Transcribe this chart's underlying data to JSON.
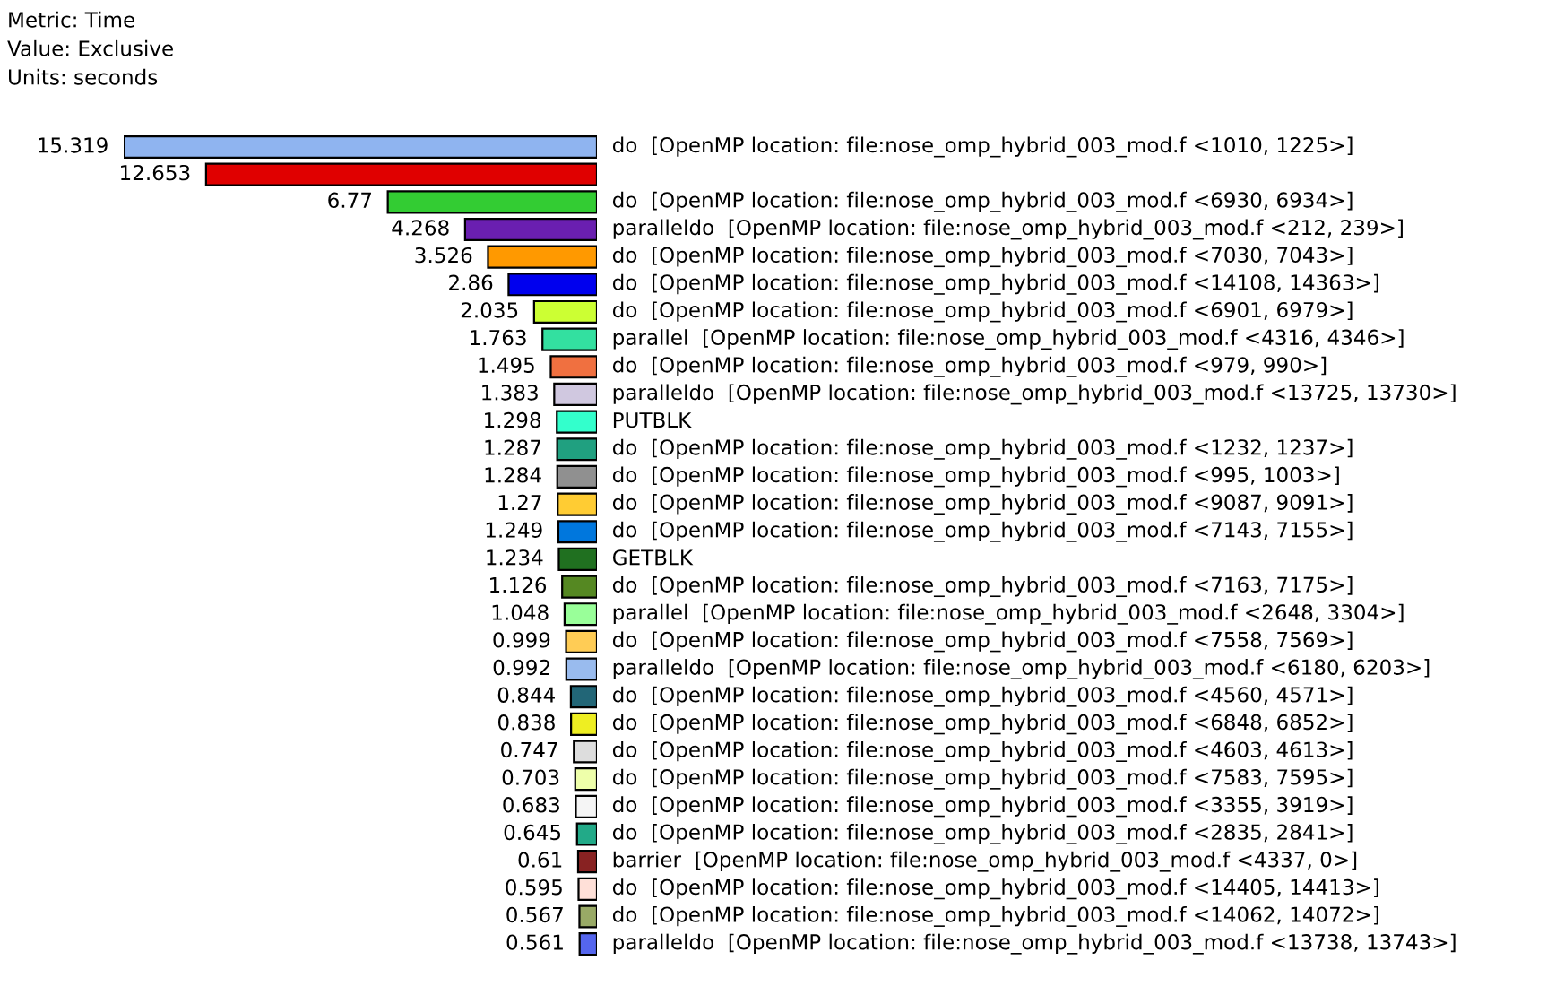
{
  "chart_data": {
    "type": "bar",
    "orientation": "horizontal",
    "data_labels": true,
    "annotations": [
      "Metric: Time",
      "Value: Exclusive",
      "Units: seconds"
    ],
    "categories": [
      "do  [OpenMP location: file:nose_omp_hybrid_003_mod.f <1010, 1225>]",
      null,
      "do  [OpenMP location: file:nose_omp_hybrid_003_mod.f <6930, 6934>]",
      "paralleldo  [OpenMP location: file:nose_omp_hybrid_003_mod.f <212, 239>]",
      "do  [OpenMP location: file:nose_omp_hybrid_003_mod.f <7030, 7043>]",
      "do  [OpenMP location: file:nose_omp_hybrid_003_mod.f <14108, 14363>]",
      "do  [OpenMP location: file:nose_omp_hybrid_003_mod.f <6901, 6979>]",
      "parallel  [OpenMP location: file:nose_omp_hybrid_003_mod.f <4316, 4346>]",
      "do  [OpenMP location: file:nose_omp_hybrid_003_mod.f <979, 990>]",
      "paralleldo  [OpenMP location: file:nose_omp_hybrid_003_mod.f <13725, 13730>]",
      "PUTBLK",
      "do  [OpenMP location: file:nose_omp_hybrid_003_mod.f <1232, 1237>]",
      "do  [OpenMP location: file:nose_omp_hybrid_003_mod.f <995, 1003>]",
      "do  [OpenMP location: file:nose_omp_hybrid_003_mod.f <9087, 9091>]",
      "do  [OpenMP location: file:nose_omp_hybrid_003_mod.f <7143, 7155>]",
      "GETBLK",
      "do  [OpenMP location: file:nose_omp_hybrid_003_mod.f <7163, 7175>]",
      "parallel  [OpenMP location: file:nose_omp_hybrid_003_mod.f <2648, 3304>]",
      "do  [OpenMP location: file:nose_omp_hybrid_003_mod.f <7558, 7569>]",
      "paralleldo  [OpenMP location: file:nose_omp_hybrid_003_mod.f <6180, 6203>]",
      "do  [OpenMP location: file:nose_omp_hybrid_003_mod.f <4560, 4571>]",
      "do  [OpenMP location: file:nose_omp_hybrid_003_mod.f <6848, 6852>]",
      "do  [OpenMP location: file:nose_omp_hybrid_003_mod.f <4603, 4613>]",
      "do  [OpenMP location: file:nose_omp_hybrid_003_mod.f <7583, 7595>]",
      "do  [OpenMP location: file:nose_omp_hybrid_003_mod.f <3355, 3919>]",
      "do  [OpenMP location: file:nose_omp_hybrid_003_mod.f <2835, 2841>]",
      "barrier  [OpenMP location: file:nose_omp_hybrid_003_mod.f <4337, 0>]",
      "do  [OpenMP location: file:nose_omp_hybrid_003_mod.f <14405, 14413>]",
      "do  [OpenMP location: file:nose_omp_hybrid_003_mod.f <14062, 14072>]",
      "paralleldo  [OpenMP location: file:nose_omp_hybrid_003_mod.f <13738, 13743>]"
    ],
    "values": [
      15.319,
      12.653,
      6.77,
      4.268,
      3.526,
      2.86,
      2.035,
      1.763,
      1.495,
      1.383,
      1.298,
      1.287,
      1.284,
      1.27,
      1.249,
      1.234,
      1.126,
      1.048,
      0.999,
      0.992,
      0.844,
      0.838,
      0.747,
      0.703,
      0.683,
      0.645,
      0.61,
      0.595,
      0.567,
      0.561
    ],
    "colors": [
      "#8fb4f0",
      "#e00000",
      "#33cc33",
      "#6a1fb0",
      "#ff9900",
      "#0000ee",
      "#ccff33",
      "#33e0a0",
      "#f07040",
      "#d0c8e0",
      "#33ffcc",
      "#20a080",
      "#909090",
      "#ffcc33",
      "#0077dd",
      "#207020",
      "#558822",
      "#99ff99",
      "#ffcc55",
      "#99bbee",
      "#226677",
      "#eeee22",
      "#dddddd",
      "#eeffaa",
      "#f5f5f5",
      "#22aa88",
      "#882222",
      "#ffe0d8",
      "#99aa66",
      "#5566ee"
    ]
  }
}
